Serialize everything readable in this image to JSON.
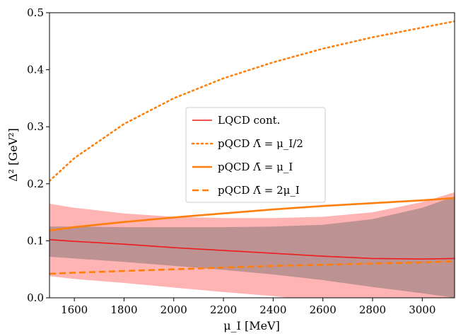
{
  "chart_data": {
    "type": "line",
    "xlabel": "μ_I [MeV]",
    "ylabel": "Δ² [GeV²]",
    "xlim": [
      1500,
      3130
    ],
    "ylim": [
      0.0,
      0.5
    ],
    "xticks": [
      "1600",
      "1800",
      "2000",
      "2200",
      "2400",
      "2600",
      "2800",
      "3000"
    ],
    "yticks": [
      "0.0",
      "0.1",
      "0.2",
      "0.3",
      "0.4",
      "0.5"
    ],
    "grid": false,
    "legend_position": "center",
    "series": [
      {
        "name": "LQCD cont.",
        "style": "solid",
        "color": "#ee1c1c",
        "x": [
          1500,
          1600,
          1800,
          2000,
          2200,
          2400,
          2600,
          2800,
          3000,
          3130
        ],
        "y": [
          0.102,
          0.099,
          0.094,
          0.088,
          0.083,
          0.078,
          0.073,
          0.069,
          0.068,
          0.069
        ]
      },
      {
        "name": "pQCD Λ̄ = μ_I/2",
        "style": "dotted",
        "color": "#ff7f0e",
        "x": [
          1500,
          1600,
          1800,
          2000,
          2200,
          2400,
          2600,
          2800,
          3000,
          3130
        ],
        "y": [
          0.205,
          0.245,
          0.305,
          0.35,
          0.385,
          0.413,
          0.437,
          0.457,
          0.474,
          0.485
        ]
      },
      {
        "name": "pQCD Λ̄ = μ_I",
        "style": "solid",
        "color": "#ff7f0e",
        "x": [
          1500,
          1600,
          1800,
          2000,
          2200,
          2400,
          2600,
          2800,
          3000,
          3130
        ],
        "y": [
          0.118,
          0.124,
          0.133,
          0.141,
          0.148,
          0.155,
          0.161,
          0.166,
          0.171,
          0.175
        ]
      },
      {
        "name": "pQCD Λ̄ = 2μ_I",
        "style": "dashed",
        "color": "#ff7f0e",
        "x": [
          1500,
          1600,
          1800,
          2000,
          2200,
          2400,
          2600,
          2800,
          3000,
          3130
        ],
        "y": [
          0.042,
          0.044,
          0.047,
          0.05,
          0.053,
          0.056,
          0.058,
          0.06,
          0.062,
          0.064
        ]
      }
    ],
    "bands": [
      {
        "name": "LQCD outer band",
        "color": "#ff9b9b",
        "opacity": 0.75,
        "x": [
          1500,
          1600,
          1800,
          2000,
          2200,
          2400,
          2600,
          2800,
          3000,
          3130
        ],
        "upper": [
          0.165,
          0.158,
          0.148,
          0.142,
          0.14,
          0.14,
          0.142,
          0.15,
          0.168,
          0.185
        ],
        "lower": [
          0.038,
          0.033,
          0.026,
          0.018,
          0.01,
          0.003,
          -0.006,
          -0.012,
          -0.02,
          -0.025
        ]
      },
      {
        "name": "LQCD inner band",
        "color": "#ad8a8a",
        "opacity": 0.8,
        "x": [
          1500,
          1600,
          1800,
          2000,
          2200,
          2400,
          2600,
          2800,
          3000,
          3130
        ],
        "upper": [
          0.125,
          0.125,
          0.124,
          0.124,
          0.124,
          0.125,
          0.128,
          0.138,
          0.158,
          0.178
        ],
        "lower": [
          0.072,
          0.069,
          0.063,
          0.056,
          0.049,
          0.041,
          0.031,
          0.019,
          0.008,
          0.0
        ]
      }
    ]
  }
}
